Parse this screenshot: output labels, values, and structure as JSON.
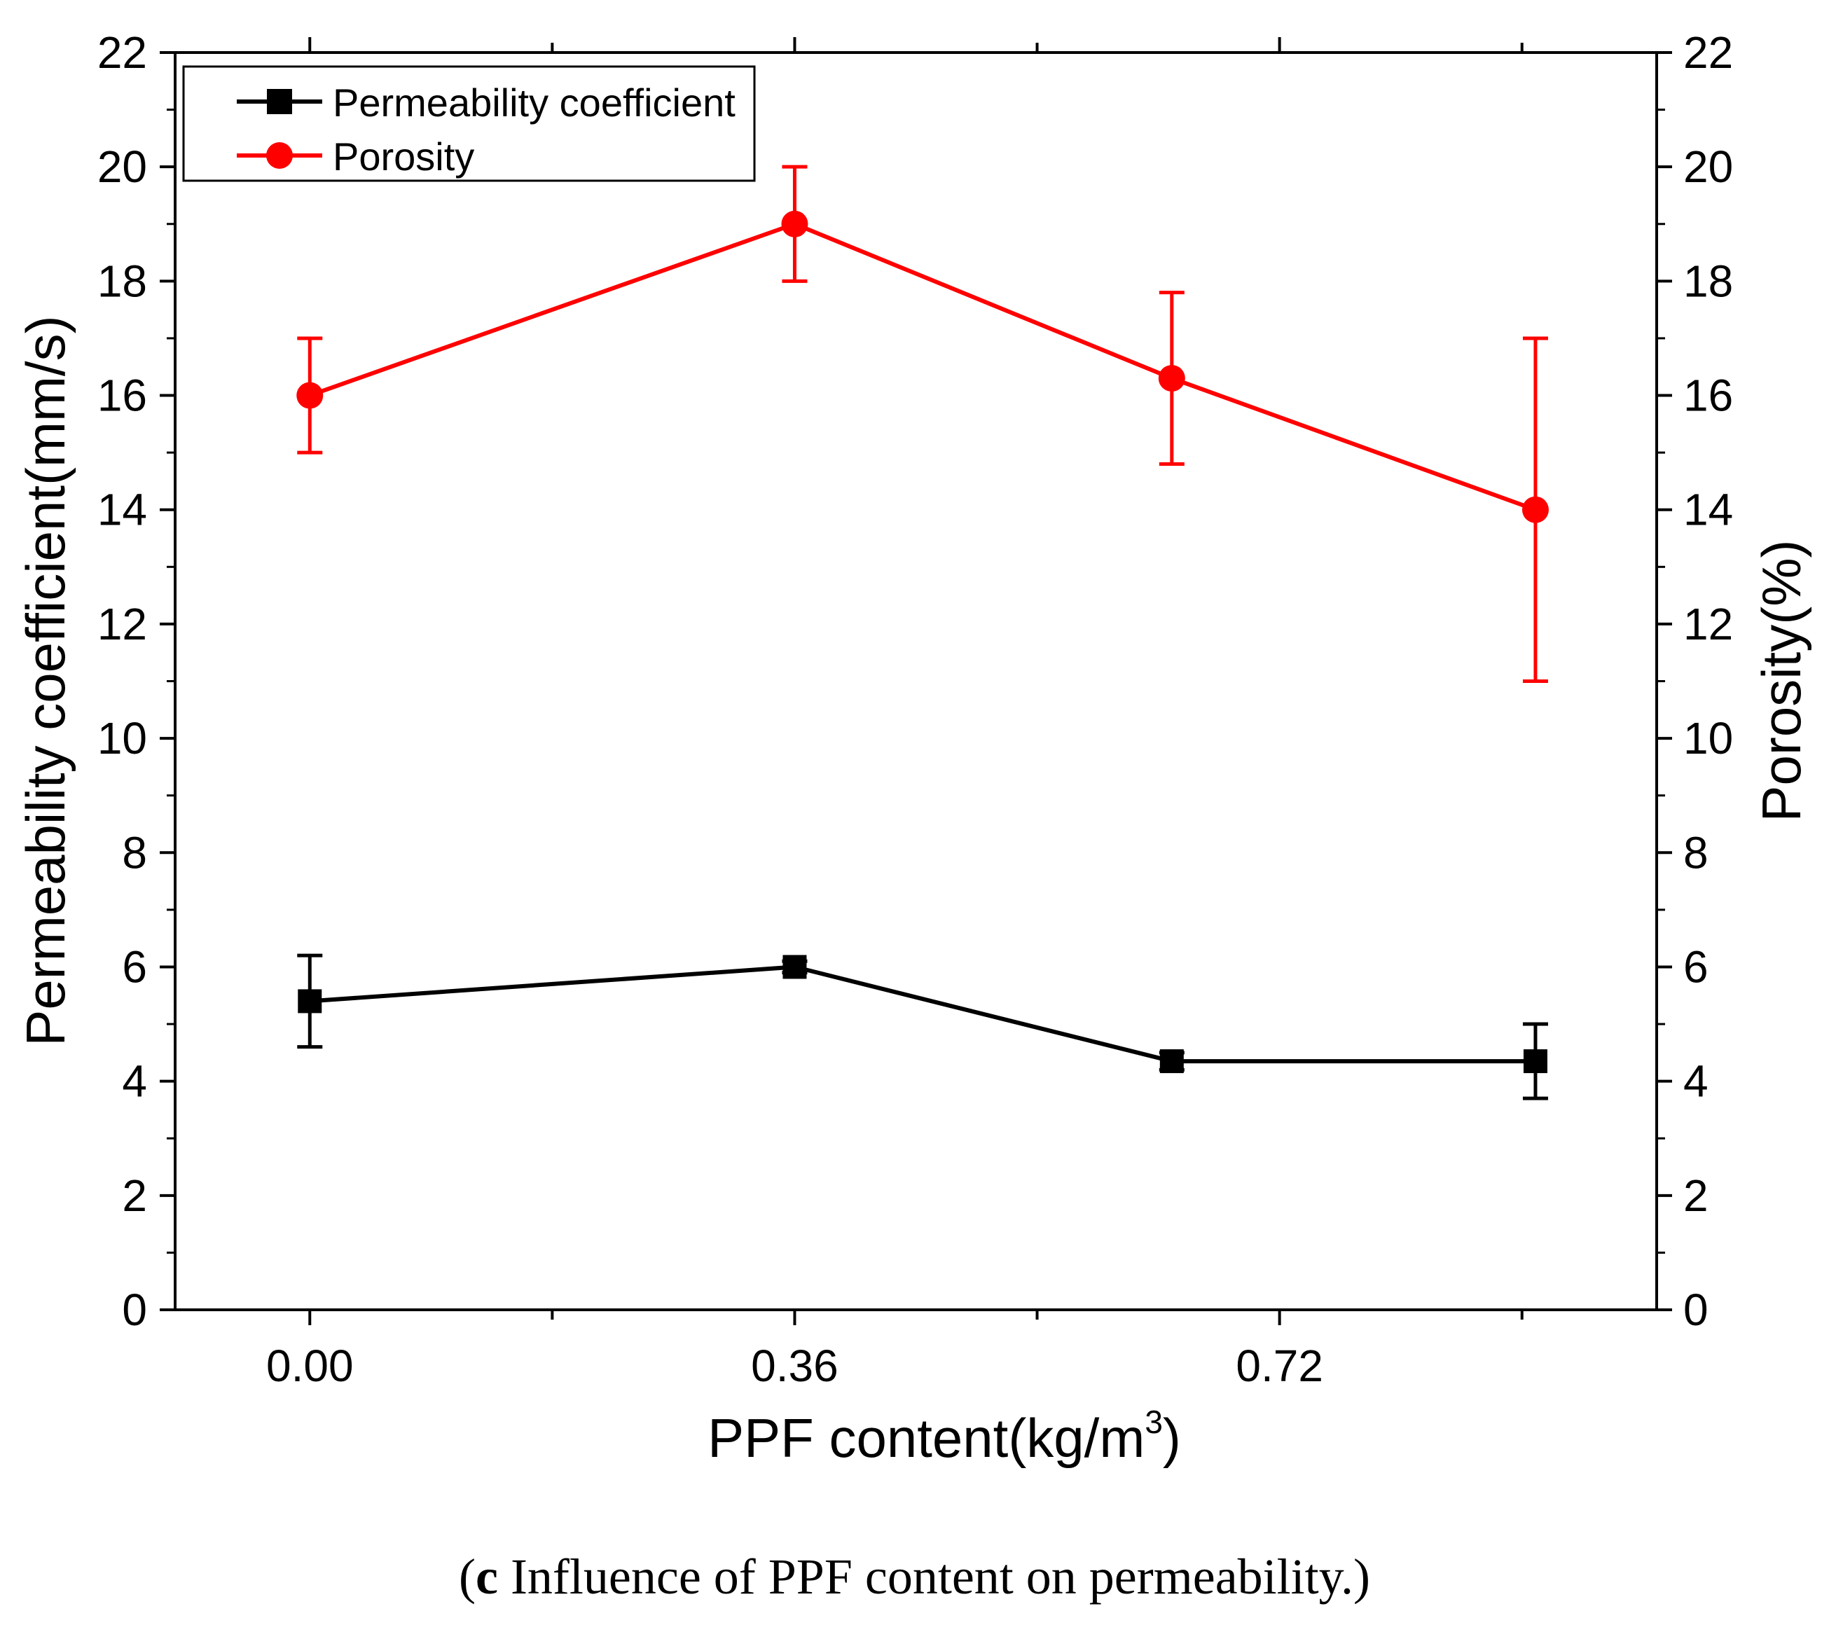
{
  "chart_data": {
    "type": "line",
    "x_ticks": [
      "0.00",
      "0.36",
      "0.72"
    ],
    "x": [
      0,
      0.36,
      0.64,
      0.91
    ],
    "xlim": [
      -0.1,
      1.0
    ],
    "xlabel": "PPF content(kg/m",
    "xlabel_sup": "3",
    "xlabel_close": ")",
    "ylabel": "Permeability coefficient(mm/s)",
    "y2label": "Porosity(%)",
    "ylim": [
      0,
      22
    ],
    "y2lim": [
      0,
      22
    ],
    "y_ticks": [
      "0",
      "2",
      "4",
      "6",
      "8",
      "10",
      "12",
      "14",
      "16",
      "18",
      "20",
      "22"
    ],
    "grid": false,
    "legend_position": "top-left",
    "series": [
      {
        "name": "Permeability coefficient",
        "axis": "left",
        "color": "#000000",
        "marker": "square",
        "values": [
          5.4,
          6.0,
          4.35,
          4.35
        ],
        "err_low": [
          4.6,
          5.9,
          4.2,
          3.7
        ],
        "err_high": [
          6.2,
          6.1,
          4.5,
          5.0
        ]
      },
      {
        "name": "Porosity",
        "axis": "right",
        "color": "#ff0000",
        "marker": "circle",
        "values": [
          16.0,
          19.0,
          16.3,
          14.0
        ],
        "err_low": [
          15.0,
          18.0,
          14.8,
          11.0
        ],
        "err_high": [
          17.0,
          20.0,
          17.8,
          17.0
        ]
      }
    ]
  },
  "caption": {
    "label": "c",
    "text": " Influence of PPF content on permeability."
  }
}
